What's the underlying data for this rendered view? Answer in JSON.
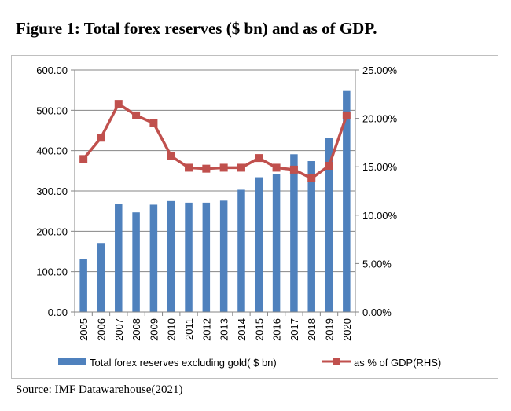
{
  "figure": {
    "title": "Figure 1: Total forex reserves  ($ bn) and as of GDP.",
    "source": "Source: IMF Datawarehouse(2021)"
  },
  "colors": {
    "bar": "#4f81bd",
    "line": "#c0504d",
    "grid": "#868686",
    "axis": "#868686"
  },
  "chart_data": {
    "type": "bar",
    "title": "Figure 1: Total forex reserves  ($ bn) and as of GDP.",
    "categories": [
      "2005",
      "2006",
      "2007",
      "2008",
      "2009",
      "2010",
      "2011",
      "2012",
      "2013",
      "2014",
      "2015",
      "2016",
      "2017",
      "2018",
      "2019",
      "2020"
    ],
    "series": [
      {
        "name": "Total forex reserves excluding gold( $ bn)",
        "type": "bar",
        "axis": "left",
        "values": [
          132,
          171,
          267,
          247,
          266,
          275,
          271,
          271,
          276,
          303,
          334,
          341,
          391,
          374,
          432,
          548
        ]
      },
      {
        "name": "as % of GDP(RHS)",
        "type": "line",
        "axis": "right",
        "marker": "square",
        "values": [
          15.8,
          18.0,
          21.5,
          20.3,
          19.5,
          16.1,
          14.9,
          14.8,
          14.9,
          14.9,
          15.9,
          14.9,
          14.7,
          13.8,
          15.1,
          20.3
        ]
      }
    ],
    "left_axis": {
      "ylim": [
        0,
        600
      ],
      "ticks": [
        0,
        100,
        200,
        300,
        400,
        500,
        600
      ],
      "tick_labels": [
        "0.00",
        "100.00",
        "200.00",
        "300.00",
        "400.00",
        "500.00",
        "600.00"
      ]
    },
    "right_axis": {
      "ylim": [
        0,
        25
      ],
      "ticks": [
        0,
        5,
        10,
        15,
        20,
        25
      ],
      "tick_labels": [
        "0.00%",
        "5.00%",
        "10.00%",
        "15.00%",
        "20.00%",
        "25.00%"
      ]
    },
    "grid": "horizontal",
    "legend_position": "bottom",
    "xlabel": "",
    "ylabel": ""
  }
}
